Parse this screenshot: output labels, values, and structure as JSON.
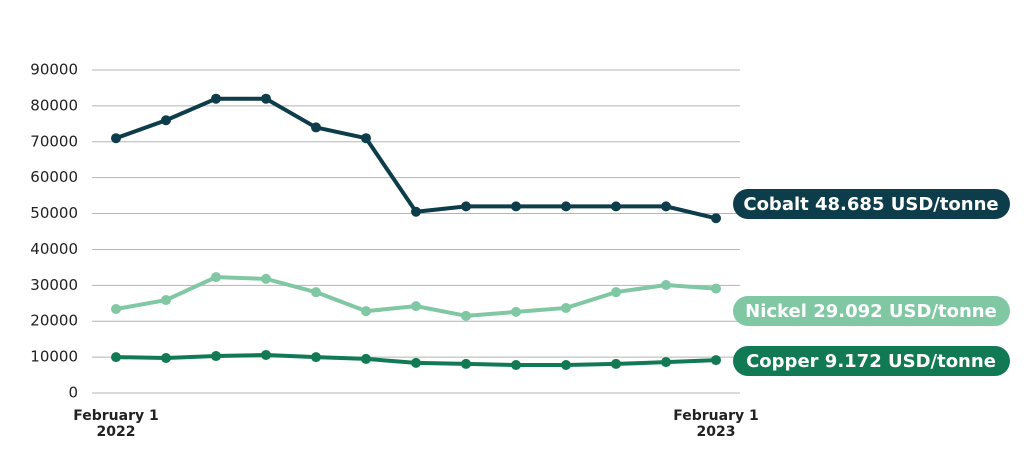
{
  "chart_data": {
    "type": "line",
    "categories": [
      "February 1\n2022",
      null,
      null,
      null,
      null,
      null,
      null,
      null,
      null,
      null,
      null,
      null,
      "February 1\n2023"
    ],
    "series": [
      {
        "name": "Cobalt 48.685 USD/tonne",
        "color": "#0d3d4a",
        "values": [
          71000,
          76000,
          82000,
          82000,
          74000,
          71000,
          50500,
          52000,
          52000,
          52000,
          52000,
          52000,
          48685
        ]
      },
      {
        "name": "Nickel 29.092 USD/tonne",
        "color": "#80c7a3",
        "values": [
          23400,
          25900,
          32300,
          31800,
          28100,
          22800,
          24200,
          21500,
          22600,
          23700,
          28100,
          30100,
          29092
        ]
      },
      {
        "name": "Copper 9.172 USD/tonne",
        "color": "#117a55",
        "values": [
          10000,
          9750,
          10300,
          10600,
          10000,
          9500,
          8400,
          8100,
          7800,
          7800,
          8100,
          8600,
          9172
        ]
      }
    ],
    "ylim": [
      0,
      90000
    ],
    "yticks": [
      0,
      10000,
      20000,
      30000,
      40000,
      50000,
      60000,
      70000,
      80000,
      90000
    ],
    "grid": true
  }
}
